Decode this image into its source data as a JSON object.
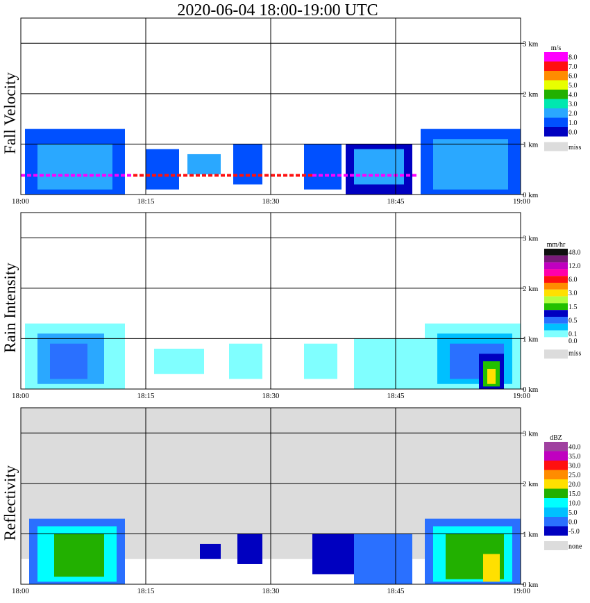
{
  "chart_data": {
    "type": "heatmap",
    "title": "2020-06-04   18:00-19:00 UTC",
    "x_ticks": [
      "18:00",
      "18:15",
      "18:30",
      "18:45",
      "19:00"
    ],
    "y_ticks": [
      "0 km",
      "1 km",
      "2 km",
      "3 km"
    ],
    "x_range_minutes": [
      0,
      60
    ],
    "y_range_km": [
      0,
      3.5
    ],
    "panels": [
      {
        "name": "fall-velocity",
        "ylabel": "Fall Velocity",
        "unit": "m/s",
        "background": "#ffffff",
        "legend": [
          {
            "label": "8.0",
            "color": "#ff00ff"
          },
          {
            "label": "7.0",
            "color": "#ff1010"
          },
          {
            "label": "6.0",
            "color": "#ff8c00"
          },
          {
            "label": "5.0",
            "color": "#e8ff00"
          },
          {
            "label": "4.0",
            "color": "#22b000"
          },
          {
            "label": "3.0",
            "color": "#00e8b0"
          },
          {
            "label": "2.0",
            "color": "#2aa8ff"
          },
          {
            "label": "1.0",
            "color": "#0050ff"
          },
          {
            "label": "0.0",
            "color": "#0000c0"
          },
          {
            "label": "miss",
            "color": "#dcdcdc"
          }
        ],
        "regions": [
          {
            "t0": 0.5,
            "t1": 12.5,
            "h0": 0,
            "h1": 1.3,
            "color": "#0050ff"
          },
          {
            "t0": 2.0,
            "t1": 11.0,
            "h0": 0.1,
            "h1": 1.0,
            "color": "#2aa8ff"
          },
          {
            "t0": 15.0,
            "t1": 19.0,
            "h0": 0.1,
            "h1": 0.9,
            "color": "#0050ff"
          },
          {
            "t0": 20.0,
            "t1": 24.0,
            "h0": 0.4,
            "h1": 0.8,
            "color": "#2aa8ff"
          },
          {
            "t0": 25.5,
            "t1": 29.0,
            "h0": 0.2,
            "h1": 1.0,
            "color": "#0050ff"
          },
          {
            "t0": 34.0,
            "t1": 38.5,
            "h0": 0.1,
            "h1": 1.0,
            "color": "#0050ff"
          },
          {
            "t0": 39.0,
            "t1": 47.0,
            "h0": 0.0,
            "h1": 1.0,
            "color": "#0000c0"
          },
          {
            "t0": 40.0,
            "t1": 46.0,
            "h0": 0.2,
            "h1": 0.9,
            "color": "#2aa8ff"
          },
          {
            "t0": 48.0,
            "t1": 60.0,
            "h0": 0.0,
            "h1": 1.3,
            "color": "#0050ff"
          },
          {
            "t0": 49.5,
            "t1": 58.5,
            "h0": 0.1,
            "h1": 1.1,
            "color": "#2aa8ff"
          }
        ],
        "lines": [
          {
            "t0": 0.0,
            "t1": 13.5,
            "h": 0.38,
            "color": "#ff00ff"
          },
          {
            "t0": 13.5,
            "t1": 35.0,
            "h": 0.38,
            "color": "#ff1010"
          },
          {
            "t0": 35.0,
            "t1": 47.5,
            "h": 0.38,
            "color": "#ff00ff"
          }
        ]
      },
      {
        "name": "rain-intensity",
        "ylabel": "Rain Intensity",
        "unit": "mm/hr",
        "background": "#ffffff",
        "legend": [
          {
            "label": "48.0",
            "color": "#101010"
          },
          {
            "label": "",
            "color": "#7a1a7a"
          },
          {
            "label": "12.0",
            "color": "#c000c0"
          },
          {
            "label": "",
            "color": "#ff00aa"
          },
          {
            "label": "6.0",
            "color": "#ff1010"
          },
          {
            "label": "",
            "color": "#ff8c00"
          },
          {
            "label": "3.0",
            "color": "#ffe000"
          },
          {
            "label": "",
            "color": "#b0ff40"
          },
          {
            "label": "1.5",
            "color": "#22c000"
          },
          {
            "label": "",
            "color": "#0000c0"
          },
          {
            "label": "0.5",
            "color": "#2a70ff"
          },
          {
            "label": "",
            "color": "#00c0ff"
          },
          {
            "label": "0.1",
            "color": "#80ffff"
          },
          {
            "label": "0.0",
            "color": "#ffffff"
          },
          {
            "label": "miss",
            "color": "#dcdcdc"
          }
        ],
        "regions": [
          {
            "t0": 0.5,
            "t1": 12.5,
            "h0": 0,
            "h1": 1.3,
            "color": "#80ffff"
          },
          {
            "t0": 2.0,
            "t1": 10.0,
            "h0": 0.1,
            "h1": 1.1,
            "color": "#2aa8ff"
          },
          {
            "t0": 3.5,
            "t1": 8.0,
            "h0": 0.2,
            "h1": 0.9,
            "color": "#2a70ff"
          },
          {
            "t0": 16.0,
            "t1": 22.0,
            "h0": 0.3,
            "h1": 0.8,
            "color": "#80ffff"
          },
          {
            "t0": 25.0,
            "t1": 29.0,
            "h0": 0.2,
            "h1": 0.9,
            "color": "#80ffff"
          },
          {
            "t0": 34.0,
            "t1": 38.0,
            "h0": 0.2,
            "h1": 0.9,
            "color": "#80ffff"
          },
          {
            "t0": 40.0,
            "t1": 49.0,
            "h0": 0.0,
            "h1": 1.0,
            "color": "#80ffff"
          },
          {
            "t0": 48.5,
            "t1": 60.0,
            "h0": 0.0,
            "h1": 1.3,
            "color": "#80ffff"
          },
          {
            "t0": 50.0,
            "t1": 59.0,
            "h0": 0.1,
            "h1": 1.1,
            "color": "#00c0ff"
          },
          {
            "t0": 51.5,
            "t1": 58.0,
            "h0": 0.2,
            "h1": 0.9,
            "color": "#2a70ff"
          },
          {
            "t0": 55.0,
            "t1": 58.0,
            "h0": 0.0,
            "h1": 0.7,
            "color": "#0000c0"
          },
          {
            "t0": 55.5,
            "t1": 57.5,
            "h0": 0.05,
            "h1": 0.55,
            "color": "#22c000"
          },
          {
            "t0": 56.0,
            "t1": 57.0,
            "h0": 0.1,
            "h1": 0.4,
            "color": "#ffe000"
          }
        ],
        "lines": []
      },
      {
        "name": "reflectivity",
        "ylabel": "Reflectivity",
        "unit": "dBZ",
        "background": "#dcdcdc",
        "legend": [
          {
            "label": "40.0",
            "color": "#a040a0"
          },
          {
            "label": "35.0",
            "color": "#c000c0"
          },
          {
            "label": "30.0",
            "color": "#ff1010"
          },
          {
            "label": "25.0",
            "color": "#ff8c00"
          },
          {
            "label": "20.0",
            "color": "#ffe000"
          },
          {
            "label": "15.0",
            "color": "#22b000"
          },
          {
            "label": "10.0",
            "color": "#00ffff"
          },
          {
            "label": "5.0",
            "color": "#00c0ff"
          },
          {
            "label": "0.0",
            "color": "#2a70ff"
          },
          {
            "label": "-5.0",
            "color": "#0000c0"
          },
          {
            "label": "none",
            "color": "#dcdcdc"
          }
        ],
        "regions": [
          {
            "t0": 0.0,
            "t1": 60.0,
            "h0": 0.0,
            "h1": 0.5,
            "color": "#ffffff"
          },
          {
            "t0": 1.0,
            "t1": 12.5,
            "h0": 0,
            "h1": 1.3,
            "color": "#2a70ff"
          },
          {
            "t0": 2.0,
            "t1": 11.5,
            "h0": 0.05,
            "h1": 1.15,
            "color": "#00ffff"
          },
          {
            "t0": 4.0,
            "t1": 10.0,
            "h0": 0.15,
            "h1": 1.0,
            "color": "#22b000"
          },
          {
            "t0": 21.5,
            "t1": 24.0,
            "h0": 0.5,
            "h1": 0.8,
            "color": "#0000c0"
          },
          {
            "t0": 26.0,
            "t1": 29.0,
            "h0": 0.4,
            "h1": 1.0,
            "color": "#0000c0"
          },
          {
            "t0": 35.0,
            "t1": 40.0,
            "h0": 0.2,
            "h1": 1.0,
            "color": "#0000c0"
          },
          {
            "t0": 40.0,
            "t1": 47.0,
            "h0": 0.0,
            "h1": 1.0,
            "color": "#2a70ff"
          },
          {
            "t0": 48.5,
            "t1": 60.0,
            "h0": 0.0,
            "h1": 1.3,
            "color": "#2a70ff"
          },
          {
            "t0": 49.5,
            "t1": 59.0,
            "h0": 0.05,
            "h1": 1.15,
            "color": "#00ffff"
          },
          {
            "t0": 51.0,
            "t1": 58.0,
            "h0": 0.1,
            "h1": 1.0,
            "color": "#22b000"
          },
          {
            "t0": 55.5,
            "t1": 57.5,
            "h0": 0.05,
            "h1": 0.6,
            "color": "#ffe000"
          }
        ],
        "lines": []
      }
    ]
  }
}
